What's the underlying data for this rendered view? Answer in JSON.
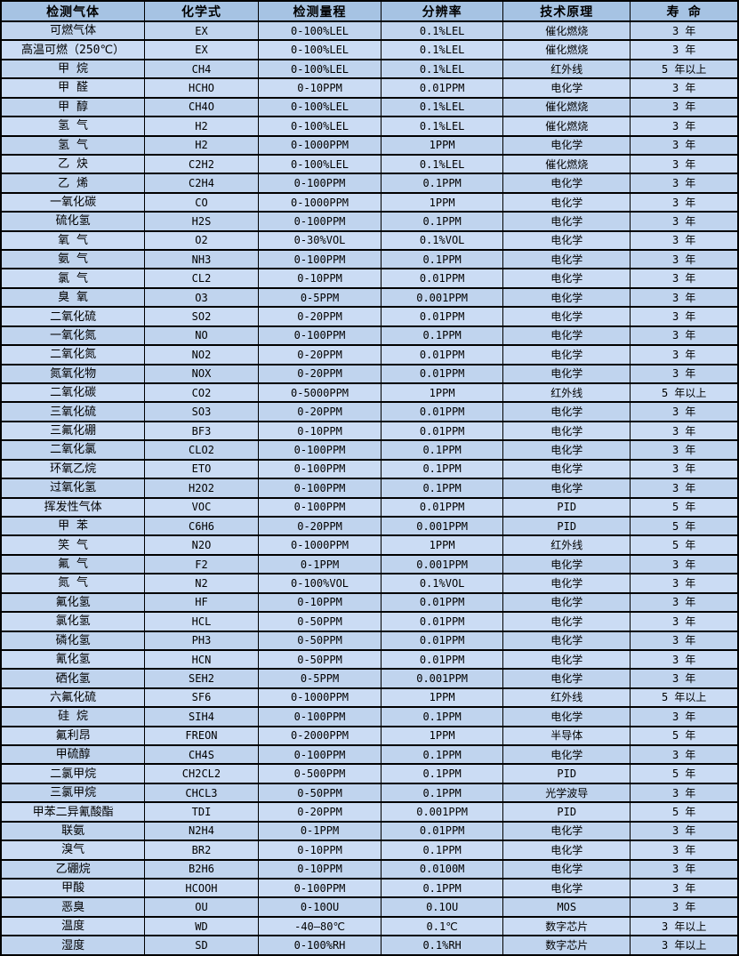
{
  "colors": {
    "header_bg": "#a6c3e3",
    "row_odd_bg": "#c0d4ee",
    "row_even_bg": "#cbdcf4",
    "border": "#000000",
    "text": "#000000"
  },
  "table": {
    "headers": [
      "检测气体",
      "化学式",
      "检测量程",
      "分辨率",
      "技术原理",
      "寿 命"
    ],
    "column_keys": [
      "gas-name",
      "chemical-formula",
      "detection-range",
      "resolution",
      "technology",
      "lifespan"
    ],
    "rows": [
      [
        "可燃气体",
        "EX",
        "0-100%LEL",
        "0.1%LEL",
        "催化燃烧",
        "3 年"
      ],
      [
        "高温可燃（250℃）",
        "EX",
        "0-100%LEL",
        "0.1%LEL",
        "催化燃烧",
        "3 年"
      ],
      [
        "甲 烷",
        "CH4",
        "0-100%LEL",
        "0.1%LEL",
        "红外线",
        "5 年以上"
      ],
      [
        "甲 醛",
        "HCHO",
        "0-10PPM",
        "0.01PPM",
        "电化学",
        "3 年"
      ],
      [
        "甲 醇",
        "CH4O",
        "0-100%LEL",
        "0.1%LEL",
        "催化燃烧",
        "3 年"
      ],
      [
        "氢 气",
        "H2",
        "0-100%LEL",
        "0.1%LEL",
        "催化燃烧",
        "3 年"
      ],
      [
        "氢 气",
        "H2",
        "0-1000PPM",
        "1PPM",
        "电化学",
        "3 年"
      ],
      [
        "乙 炔",
        "C2H2",
        "0-100%LEL",
        "0.1%LEL",
        "催化燃烧",
        "3 年"
      ],
      [
        "乙 烯",
        "C2H4",
        "0-100PPM",
        "0.1PPM",
        "电化学",
        "3 年"
      ],
      [
        "一氧化碳",
        "CO",
        "0-1000PPM",
        "1PPM",
        "电化学",
        "3 年"
      ],
      [
        "硫化氢",
        "H2S",
        "0-100PPM",
        "0.1PPM",
        "电化学",
        "3 年"
      ],
      [
        "氧 气",
        "O2",
        "0-30%VOL",
        "0.1%VOL",
        "电化学",
        "3 年"
      ],
      [
        "氨 气",
        "NH3",
        "0-100PPM",
        "0.1PPM",
        "电化学",
        "3 年"
      ],
      [
        "氯 气",
        "CL2",
        "0-10PPM",
        "0.01PPM",
        "电化学",
        "3 年"
      ],
      [
        "臭 氧",
        "O3",
        "0-5PPM",
        "0.001PPM",
        "电化学",
        "3 年"
      ],
      [
        "二氧化硫",
        "SO2",
        "0-20PPM",
        "0.01PPM",
        "电化学",
        "3 年"
      ],
      [
        "一氧化氮",
        "NO",
        "0-100PPM",
        "0.1PPM",
        "电化学",
        "3 年"
      ],
      [
        "二氧化氮",
        "NO2",
        "0-20PPM",
        "0.01PPM",
        "电化学",
        "3 年"
      ],
      [
        "氮氧化物",
        "NOX",
        "0-20PPM",
        "0.01PPM",
        "电化学",
        "3 年"
      ],
      [
        "二氧化碳",
        "CO2",
        "0-5000PPM",
        "1PPM",
        "红外线",
        "5 年以上"
      ],
      [
        "三氧化硫",
        "SO3",
        "0-20PPM",
        "0.01PPM",
        "电化学",
        "3 年"
      ],
      [
        "三氟化硼",
        "BF3",
        "0-10PPM",
        "0.01PPM",
        "电化学",
        "3 年"
      ],
      [
        "二氧化氯",
        "CLO2",
        "0-100PPM",
        "0.1PPM",
        "电化学",
        "3 年"
      ],
      [
        "环氧乙烷",
        "ETO",
        "0-100PPM",
        "0.1PPM",
        "电化学",
        "3 年"
      ],
      [
        "过氧化氢",
        "H2O2",
        "0-100PPM",
        "0.1PPM",
        "电化学",
        "3 年"
      ],
      [
        "挥发性气体",
        "VOC",
        "0-100PPM",
        "0.01PPM",
        "PID",
        "5 年"
      ],
      [
        "甲 苯",
        "C6H6",
        "0-20PPM",
        "0.001PPM",
        "PID",
        "5 年"
      ],
      [
        "笑 气",
        "N2O",
        "0-1000PPM",
        "1PPM",
        "红外线",
        "5 年"
      ],
      [
        "氟 气",
        "F2",
        "0-1PPM",
        "0.001PPM",
        "电化学",
        "3 年"
      ],
      [
        "氮 气",
        "N2",
        "0-100%VOL",
        "0.1%VOL",
        "电化学",
        "3 年"
      ],
      [
        "氟化氢",
        "HF",
        "0-10PPM",
        "0.01PPM",
        "电化学",
        "3 年"
      ],
      [
        "氯化氢",
        "HCL",
        "0-50PPM",
        "0.01PPM",
        "电化学",
        "3 年"
      ],
      [
        "磷化氢",
        "PH3",
        "0-50PPM",
        "0.01PPM",
        "电化学",
        "3 年"
      ],
      [
        "氰化氢",
        "HCN",
        "0-50PPM",
        "0.01PPM",
        "电化学",
        "3 年"
      ],
      [
        "硒化氢",
        "SEH2",
        "0-5PPM",
        "0.001PPM",
        "电化学",
        "3 年"
      ],
      [
        "六氟化硫",
        "SF6",
        "0-1000PPM",
        "1PPM",
        "红外线",
        "5 年以上"
      ],
      [
        "硅 烷",
        "SIH4",
        "0-100PPM",
        "0.1PPM",
        "电化学",
        "3 年"
      ],
      [
        "氟利昂",
        "FREON",
        "0-2000PPM",
        "1PPM",
        "半导体",
        "5 年"
      ],
      [
        "甲硫醇",
        "CH4S",
        "0-100PPM",
        "0.1PPM",
        "电化学",
        "3 年"
      ],
      [
        "二氯甲烷",
        "CH2CL2",
        "0-500PPM",
        "0.1PPM",
        "PID",
        "5 年"
      ],
      [
        "三氯甲烷",
        "CHCL3",
        "0-50PPM",
        "0.1PPM",
        "光学波导",
        "3 年"
      ],
      [
        "甲苯二异氰酸酯",
        "TDI",
        "0-20PPM",
        "0.001PPM",
        "PID",
        "5 年"
      ],
      [
        "联氨",
        "N2H4",
        "0-1PPM",
        "0.01PPM",
        "电化学",
        "3 年"
      ],
      [
        "溴气",
        "BR2",
        "0-10PPM",
        "0.1PPM",
        "电化学",
        "3 年"
      ],
      [
        "乙硼烷",
        "B2H6",
        "0-10PPM",
        "0.0100M",
        "电化学",
        "3 年"
      ],
      [
        "甲酸",
        "HCOOH",
        "0-100PPM",
        "0.1PPM",
        "电化学",
        "3 年"
      ],
      [
        "恶臭",
        "OU",
        "0-10OU",
        "0.1OU",
        "MOS",
        "3 年"
      ],
      [
        "温度",
        "WD",
        "-40—80℃",
        "0.1℃",
        "数字芯片",
        "3 年以上"
      ],
      [
        "湿度",
        "SD",
        "0-100%RH",
        "0.1%RH",
        "数字芯片",
        "3 年以上"
      ]
    ]
  }
}
